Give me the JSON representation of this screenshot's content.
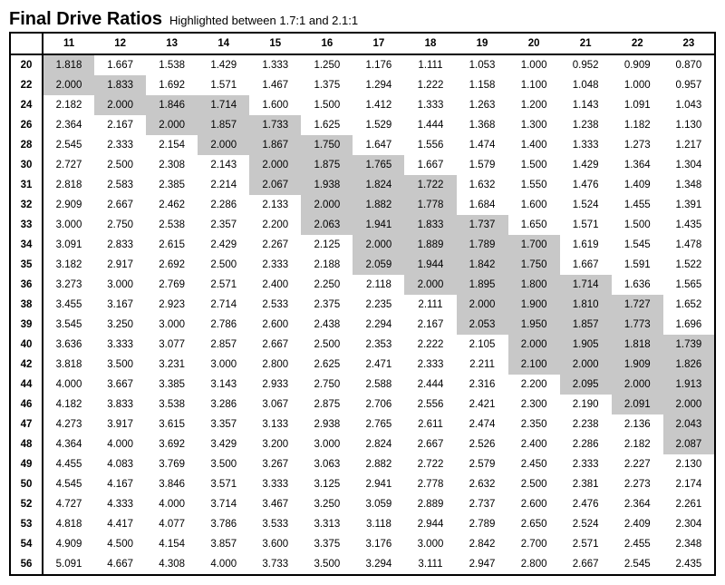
{
  "title": "Final Drive Ratios",
  "subtitle": "Highlighted between 1.7:1 and 2.1:1",
  "highlight_range": {
    "min": 1.7,
    "max": 2.1
  },
  "highlight_color": "#c8c8c8",
  "background_color": "#ffffff",
  "border_color": "#000000",
  "font_family": "Arial",
  "title_fontsize": 20,
  "subtitle_fontsize": 13,
  "cell_fontsize": 11.5,
  "columns": [
    11,
    12,
    13,
    14,
    15,
    16,
    17,
    18,
    19,
    20,
    21,
    22,
    23
  ],
  "rows": [
    {
      "h": 20,
      "v": [
        1.818,
        1.667,
        1.538,
        1.429,
        1.333,
        1.25,
        1.176,
        1.111,
        1.053,
        1.0,
        0.952,
        0.909,
        0.87
      ]
    },
    {
      "h": 22,
      "v": [
        2.0,
        1.833,
        1.692,
        1.571,
        1.467,
        1.375,
        1.294,
        1.222,
        1.158,
        1.1,
        1.048,
        1.0,
        0.957
      ]
    },
    {
      "h": 24,
      "v": [
        2.182,
        2.0,
        1.846,
        1.714,
        1.6,
        1.5,
        1.412,
        1.333,
        1.263,
        1.2,
        1.143,
        1.091,
        1.043
      ]
    },
    {
      "h": 26,
      "v": [
        2.364,
        2.167,
        2.0,
        1.857,
        1.733,
        1.625,
        1.529,
        1.444,
        1.368,
        1.3,
        1.238,
        1.182,
        1.13
      ]
    },
    {
      "h": 28,
      "v": [
        2.545,
        2.333,
        2.154,
        2.0,
        1.867,
        1.75,
        1.647,
        1.556,
        1.474,
        1.4,
        1.333,
        1.273,
        1.217
      ]
    },
    {
      "h": 30,
      "v": [
        2.727,
        2.5,
        2.308,
        2.143,
        2.0,
        1.875,
        1.765,
        1.667,
        1.579,
        1.5,
        1.429,
        1.364,
        1.304
      ]
    },
    {
      "h": 31,
      "v": [
        2.818,
        2.583,
        2.385,
        2.214,
        2.067,
        1.938,
        1.824,
        1.722,
        1.632,
        1.55,
        1.476,
        1.409,
        1.348
      ]
    },
    {
      "h": 32,
      "v": [
        2.909,
        2.667,
        2.462,
        2.286,
        2.133,
        2.0,
        1.882,
        1.778,
        1.684,
        1.6,
        1.524,
        1.455,
        1.391
      ]
    },
    {
      "h": 33,
      "v": [
        3.0,
        2.75,
        2.538,
        2.357,
        2.2,
        2.063,
        1.941,
        1.833,
        1.737,
        1.65,
        1.571,
        1.5,
        1.435
      ]
    },
    {
      "h": 34,
      "v": [
        3.091,
        2.833,
        2.615,
        2.429,
        2.267,
        2.125,
        2.0,
        1.889,
        1.789,
        1.7,
        1.619,
        1.545,
        1.478
      ]
    },
    {
      "h": 35,
      "v": [
        3.182,
        2.917,
        2.692,
        2.5,
        2.333,
        2.188,
        2.059,
        1.944,
        1.842,
        1.75,
        1.667,
        1.591,
        1.522
      ]
    },
    {
      "h": 36,
      "v": [
        3.273,
        3.0,
        2.769,
        2.571,
        2.4,
        2.25,
        2.118,
        2.0,
        1.895,
        1.8,
        1.714,
        1.636,
        1.565
      ]
    },
    {
      "h": 38,
      "v": [
        3.455,
        3.167,
        2.923,
        2.714,
        2.533,
        2.375,
        2.235,
        2.111,
        2.0,
        1.9,
        1.81,
        1.727,
        1.652
      ]
    },
    {
      "h": 39,
      "v": [
        3.545,
        3.25,
        3.0,
        2.786,
        2.6,
        2.438,
        2.294,
        2.167,
        2.053,
        1.95,
        1.857,
        1.773,
        1.696
      ]
    },
    {
      "h": 40,
      "v": [
        3.636,
        3.333,
        3.077,
        2.857,
        2.667,
        2.5,
        2.353,
        2.222,
        2.105,
        2.0,
        1.905,
        1.818,
        1.739
      ]
    },
    {
      "h": 42,
      "v": [
        3.818,
        3.5,
        3.231,
        3.0,
        2.8,
        2.625,
        2.471,
        2.333,
        2.211,
        2.1,
        2.0,
        1.909,
        1.826
      ]
    },
    {
      "h": 44,
      "v": [
        4.0,
        3.667,
        3.385,
        3.143,
        2.933,
        2.75,
        2.588,
        2.444,
        2.316,
        2.2,
        2.095,
        2.0,
        1.913
      ]
    },
    {
      "h": 46,
      "v": [
        4.182,
        3.833,
        3.538,
        3.286,
        3.067,
        2.875,
        2.706,
        2.556,
        2.421,
        2.3,
        2.19,
        2.091,
        2.0
      ]
    },
    {
      "h": 47,
      "v": [
        4.273,
        3.917,
        3.615,
        3.357,
        3.133,
        2.938,
        2.765,
        2.611,
        2.474,
        2.35,
        2.238,
        2.136,
        2.043
      ]
    },
    {
      "h": 48,
      "v": [
        4.364,
        4.0,
        3.692,
        3.429,
        3.2,
        3.0,
        2.824,
        2.667,
        2.526,
        2.4,
        2.286,
        2.182,
        2.087
      ]
    },
    {
      "h": 49,
      "v": [
        4.455,
        4.083,
        3.769,
        3.5,
        3.267,
        3.063,
        2.882,
        2.722,
        2.579,
        2.45,
        2.333,
        2.227,
        2.13
      ]
    },
    {
      "h": 50,
      "v": [
        4.545,
        4.167,
        3.846,
        3.571,
        3.333,
        3.125,
        2.941,
        2.778,
        2.632,
        2.5,
        2.381,
        2.273,
        2.174
      ]
    },
    {
      "h": 52,
      "v": [
        4.727,
        4.333,
        4.0,
        3.714,
        3.467,
        3.25,
        3.059,
        2.889,
        2.737,
        2.6,
        2.476,
        2.364,
        2.261
      ]
    },
    {
      "h": 53,
      "v": [
        4.818,
        4.417,
        4.077,
        3.786,
        3.533,
        3.313,
        3.118,
        2.944,
        2.789,
        2.65,
        2.524,
        2.409,
        2.304
      ]
    },
    {
      "h": 54,
      "v": [
        4.909,
        4.5,
        4.154,
        3.857,
        3.6,
        3.375,
        3.176,
        3.0,
        2.842,
        2.7,
        2.571,
        2.455,
        2.348
      ]
    },
    {
      "h": 56,
      "v": [
        5.091,
        4.667,
        4.308,
        4.0,
        3.733,
        3.5,
        3.294,
        3.111,
        2.947,
        2.8,
        2.667,
        2.545,
        2.435
      ]
    }
  ]
}
